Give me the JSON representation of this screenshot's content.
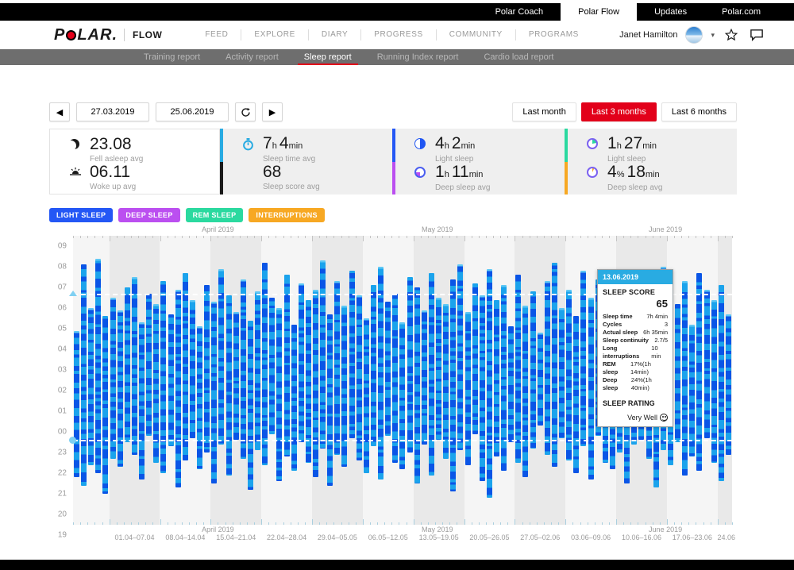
{
  "top_bar": {
    "tabs": [
      {
        "label": "Polar Coach",
        "active": false
      },
      {
        "label": "Polar Flow",
        "active": true
      },
      {
        "label": "Updates",
        "active": false
      },
      {
        "label": "Polar.com",
        "active": false
      }
    ]
  },
  "header": {
    "logo_prefix": "P",
    "logo_suffix": "LAR.",
    "product": "FLOW",
    "nav": [
      "FEED",
      "EXPLORE",
      "DIARY",
      "PROGRESS",
      "COMMUNITY",
      "PROGRAMS"
    ],
    "user": {
      "name": "Janet Hamilton"
    }
  },
  "subnav": {
    "tabs": [
      "Training report",
      "Activity report",
      "Sleep report",
      "Running Index report",
      "Cardio load report"
    ],
    "active": "Sleep report"
  },
  "controls": {
    "start_date": "27.03.2019",
    "end_date": "25.06.2019",
    "prev_label": "◀",
    "next_label": "▶",
    "periods": [
      "Last month",
      "Last 3 months",
      "Last 6 months"
    ],
    "active_period": "Last 3 months"
  },
  "stats": {
    "panels": [
      {
        "white": true,
        "rows": [
          {
            "icon": "moon-icon",
            "value": "23.08",
            "label": "Fell asleep avg"
          },
          {
            "icon": "sunrise-icon",
            "value": "06.11",
            "label": "Woke up avg"
          }
        ]
      },
      {
        "white": false,
        "rows": [
          {
            "icon": "stopwatch-icon",
            "value": "7h 4min",
            "label": "Sleep time avg"
          },
          {
            "icon": "none",
            "value": "68",
            "label": "Sleep score avg"
          }
        ]
      },
      {
        "white": false,
        "rows": [
          {
            "icon": "light-sleep-pie-icon",
            "value": "4h 2min",
            "label": "Light sleep"
          },
          {
            "icon": "deep-sleep-pie-icon",
            "value": "1h 11min",
            "label": "Deep sleep avg"
          }
        ]
      },
      {
        "white": false,
        "rows": [
          {
            "icon": "rem-sleep-pie-icon",
            "value": "1h 27min",
            "label": "Light sleep"
          },
          {
            "icon": "interruptions-pie-icon",
            "value": "4% 18min",
            "label": "Deep sleep avg"
          }
        ]
      }
    ],
    "dividers": [
      [
        "#29abe2",
        "#1a1a1a"
      ],
      [
        "#2457f5",
        "#bb4ff0"
      ],
      [
        "#2bd99f",
        "#f7a823"
      ]
    ]
  },
  "legend": [
    {
      "label": "LIGHT SLEEP",
      "color": "#2457f5"
    },
    {
      "label": "DEEP SLEEP",
      "color": "#bb4ff0"
    },
    {
      "label": "REM SLEEP",
      "color": "#2bd99f"
    },
    {
      "label": "INTERRUPTIONS",
      "color": "#f7a823"
    }
  ],
  "tooltip": {
    "date": "13.06.2019",
    "score_label": "SLEEP SCORE",
    "score": "65",
    "rows": [
      [
        "Sleep time",
        "7h 4min"
      ],
      [
        "Cycles",
        "3"
      ],
      [
        "Actual sleep",
        "6h 35min"
      ],
      [
        "Sleep continuity",
        "2.7/5"
      ],
      [
        "Long interruptions",
        "10 min"
      ],
      [
        "REM sleep",
        "17%(1h 14min)"
      ],
      [
        "Deep sleep",
        "24%(1h 40min)"
      ]
    ],
    "rating_label": "SLEEP RATING",
    "rating": "Very Well"
  },
  "chart_data": {
    "type": "bar",
    "title": "Sleep times per night, 27.03.2019–25.06.2019",
    "y_axis_labels": [
      "09",
      "08",
      "07",
      "06",
      "05",
      "04",
      "03",
      "02",
      "01",
      "00",
      "23",
      "22",
      "21",
      "20",
      "19"
    ],
    "y_axis_desc": "clock time, 19:00 at bottom to 09:00 at top",
    "months": [
      "April 2019",
      "May 2019",
      "June 2019"
    ],
    "months_day_pos": [
      20,
      50.3,
      81.8
    ],
    "week_labels": [
      {
        "label": "01.04–07.04",
        "day": 8.5
      },
      {
        "label": "08.04–14.04",
        "day": 15.5
      },
      {
        "label": "15.04–21.04",
        "day": 22.5
      },
      {
        "label": "22.04–28.04",
        "day": 29.5
      },
      {
        "label": "29.04–05.05",
        "day": 36.5
      },
      {
        "label": "06.05–12.05",
        "day": 43.5
      },
      {
        "label": "13.05–19.05",
        "day": 50.5
      },
      {
        "label": "20.05–26.05",
        "day": 57.5
      },
      {
        "label": "27.05–02.06",
        "day": 64.5
      },
      {
        "label": "03.06–09.06",
        "day": 71.5
      },
      {
        "label": "10.06–16.06",
        "day": 78.5
      },
      {
        "label": "17.06–23.06",
        "day": 85.5
      },
      {
        "label": "24.06",
        "day": 90.2
      }
    ],
    "avg_fell_asleep": 23.13,
    "avg_woke_up": 6.18,
    "days_desc": "per-night [fell_asleep_hour, woke_up_hour], estimated from bars",
    "days": [
      [
        21.3,
        4.4
      ],
      [
        20.9,
        7.6
      ],
      [
        21.9,
        5.5
      ],
      [
        21.5,
        7.9
      ],
      [
        20.5,
        5.1
      ],
      [
        22.2,
        6.0
      ],
      [
        21.8,
        5.4
      ],
      [
        23.0,
        6.5
      ],
      [
        22.4,
        7.0
      ],
      [
        21.2,
        4.8
      ],
      [
        23.3,
        6.2
      ],
      [
        22.0,
        5.7
      ],
      [
        21.5,
        6.8
      ],
      [
        22.8,
        5.2
      ],
      [
        20.8,
        6.4
      ],
      [
        22.1,
        7.2
      ],
      [
        23.2,
        5.9
      ],
      [
        21.7,
        4.6
      ],
      [
        22.5,
        6.6
      ],
      [
        21.0,
        5.8
      ],
      [
        22.9,
        7.4
      ],
      [
        21.4,
        6.1
      ],
      [
        23.1,
        5.3
      ],
      [
        22.2,
        6.9
      ],
      [
        20.7,
        4.9
      ],
      [
        22.6,
        6.3
      ],
      [
        21.9,
        7.7
      ],
      [
        23.4,
        6.0
      ],
      [
        21.1,
        5.5
      ],
      [
        22.3,
        7.1
      ],
      [
        21.6,
        4.7
      ],
      [
        23.0,
        6.7
      ],
      [
        22.0,
        5.9
      ],
      [
        21.3,
        6.4
      ],
      [
        22.7,
        7.8
      ],
      [
        20.9,
        5.2
      ],
      [
        22.4,
        6.8
      ],
      [
        21.8,
        5.6
      ],
      [
        23.2,
        7.3
      ],
      [
        22.1,
        6.1
      ],
      [
        21.5,
        5.0
      ],
      [
        22.8,
        6.6
      ],
      [
        21.2,
        7.5
      ],
      [
        23.3,
        5.8
      ],
      [
        22.0,
        6.2
      ],
      [
        21.7,
        4.8
      ],
      [
        22.5,
        7.0
      ],
      [
        21.0,
        6.5
      ],
      [
        22.9,
        5.4
      ],
      [
        21.4,
        7.2
      ],
      [
        23.1,
        6.0
      ],
      [
        22.2,
        5.7
      ],
      [
        20.6,
        6.9
      ],
      [
        22.6,
        7.6
      ],
      [
        21.9,
        5.3
      ],
      [
        23.4,
        6.7
      ],
      [
        21.1,
        6.1
      ],
      [
        20.3,
        7.4
      ],
      [
        22.3,
        5.9
      ],
      [
        21.6,
        6.6
      ],
      [
        23.0,
        4.6
      ],
      [
        22.0,
        7.1
      ],
      [
        21.3,
        5.6
      ],
      [
        22.7,
        6.3
      ],
      [
        23.8,
        4.3
      ],
      [
        22.4,
        6.8
      ],
      [
        21.8,
        7.7
      ],
      [
        23.2,
        5.5
      ],
      [
        22.1,
        6.4
      ],
      [
        21.5,
        5.1
      ],
      [
        22.8,
        7.3
      ],
      [
        21.2,
        6.0
      ],
      [
        23.3,
        6.9
      ],
      [
        22.0,
        4.9
      ],
      [
        21.7,
        6.5
      ],
      [
        22.5,
        5.8
      ],
      [
        21.0,
        7.0
      ],
      [
        22.9,
        6.2
      ],
      [
        23.1,
        6.2
      ],
      [
        22.2,
        5.4
      ],
      [
        20.8,
        6.7
      ],
      [
        22.6,
        7.5
      ],
      [
        21.9,
        6.1
      ],
      [
        23.0,
        5.7
      ],
      [
        21.4,
        6.8
      ],
      [
        22.3,
        4.7
      ],
      [
        21.6,
        7.2
      ],
      [
        23.2,
        6.4
      ],
      [
        22.0,
        5.9
      ],
      [
        21.1,
        6.6
      ],
      [
        22.4,
        5.2
      ]
    ],
    "colors": {
      "bar_light": "#1ba3ec",
      "bar_dark": "#0a55e6",
      "bar_cap": "#5fc8f5",
      "band": "#e9e9e9",
      "plot_bg": "#f5f5f5",
      "tick_top": "#c4c4c4",
      "tick_bottom": "#a9cfdf",
      "avg_line": "#ffffff",
      "axis_marker": "#7fd0f2"
    },
    "legend_position": "top-left",
    "grid": "weekly alternating vertical bands"
  }
}
